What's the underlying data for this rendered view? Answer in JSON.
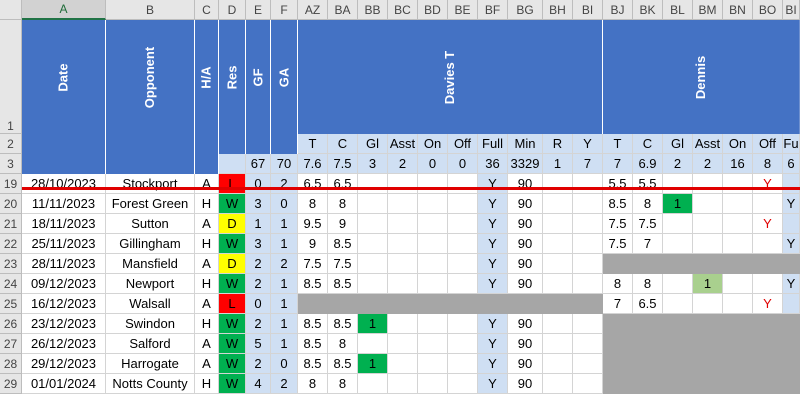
{
  "column_letters": [
    "A",
    "B",
    "C",
    "D",
    "E",
    "F",
    "AZ",
    "BA",
    "BB",
    "BC",
    "BD",
    "BE",
    "BF",
    "BG",
    "BH",
    "BI",
    "BJ",
    "BK",
    "BL",
    "BM",
    "BN",
    "BO",
    "BI"
  ],
  "selected_column": "A",
  "header_titles": {
    "date": "Date",
    "opponent": "Opponent",
    "ha": "H/A",
    "res": "Res",
    "gf": "GF",
    "ga": "GA",
    "player1": "Davies T",
    "player2": "Dennis"
  },
  "row_numbers_top": [
    "1",
    "2",
    "3"
  ],
  "stat_labels": [
    "T",
    "C",
    "Gl",
    "Asst",
    "On",
    "Off",
    "Full",
    "Min",
    "R",
    "Y",
    "T",
    "C",
    "Gl",
    "Asst",
    "On",
    "Off",
    "Fu"
  ],
  "totals": {
    "gf": "67",
    "ga": "70",
    "p1": [
      "7.6",
      "7.5",
      "3",
      "2",
      "0",
      "0",
      "36",
      "3329",
      "1",
      "7"
    ],
    "p2": [
      "7",
      "6.9",
      "2",
      "2",
      "16",
      "8",
      "6"
    ]
  },
  "rows": [
    {
      "row": "19",
      "date": "28/10/2023",
      "opp": "Stockport",
      "ha": "A",
      "res": "L",
      "gf": "0",
      "ga": "2",
      "p1": [
        "6.5",
        "6.5",
        "",
        "",
        "",
        "",
        "Y",
        "90",
        "",
        ""
      ],
      "p2": [
        "5.5",
        "5.5",
        "",
        "",
        "",
        "Y",
        ""
      ],
      "p1_gray": false,
      "p2_gray": false
    },
    {
      "row": "20",
      "date": "11/11/2023",
      "opp": "Forest Green",
      "ha": "H",
      "res": "W",
      "gf": "3",
      "ga": "0",
      "p1": [
        "8",
        "8",
        "",
        "",
        "",
        "",
        "Y",
        "90",
        "",
        ""
      ],
      "p2": [
        "8.5",
        "8",
        "1",
        "",
        "",
        "",
        "Y"
      ],
      "p1_gray": false,
      "p2_gray": false
    },
    {
      "row": "21",
      "date": "18/11/2023",
      "opp": "Sutton",
      "ha": "A",
      "res": "D",
      "gf": "1",
      "ga": "1",
      "p1": [
        "9.5",
        "9",
        "",
        "",
        "",
        "",
        "Y",
        "90",
        "",
        ""
      ],
      "p2": [
        "7.5",
        "7.5",
        "",
        "",
        "",
        "Y",
        ""
      ],
      "p1_gray": false,
      "p2_gray": false
    },
    {
      "row": "22",
      "date": "25/11/2023",
      "opp": "Gillingham",
      "ha": "H",
      "res": "W",
      "gf": "3",
      "ga": "1",
      "p1": [
        "9",
        "8.5",
        "",
        "",
        "",
        "",
        "Y",
        "90",
        "",
        ""
      ],
      "p2": [
        "7.5",
        "7",
        "",
        "",
        "",
        "",
        "Y"
      ],
      "p1_gray": false,
      "p2_gray": false
    },
    {
      "row": "23",
      "date": "28/11/2023",
      "opp": "Mansfield",
      "ha": "A",
      "res": "D",
      "gf": "2",
      "ga": "2",
      "p1": [
        "7.5",
        "7.5",
        "",
        "",
        "",
        "",
        "Y",
        "90",
        "",
        ""
      ],
      "p2": [
        "",
        "",
        "",
        "",
        "",
        "",
        ""
      ],
      "p1_gray": false,
      "p2_gray": true
    },
    {
      "row": "24",
      "date": "09/12/2023",
      "opp": "Newport",
      "ha": "H",
      "res": "W",
      "gf": "2",
      "ga": "1",
      "p1": [
        "8.5",
        "8.5",
        "",
        "",
        "",
        "",
        "Y",
        "90",
        "",
        ""
      ],
      "p2": [
        "8",
        "8",
        "",
        "1",
        "",
        "",
        "Y"
      ],
      "p1_gray": false,
      "p2_gray": false
    },
    {
      "row": "25",
      "date": "16/12/2023",
      "opp": "Walsall",
      "ha": "A",
      "res": "L",
      "gf": "0",
      "ga": "1",
      "p1": [
        "",
        "",
        "",
        "",
        "",
        "",
        "",
        "",
        "",
        ""
      ],
      "p2": [
        "7",
        "6.5",
        "",
        "",
        "",
        "Y",
        ""
      ],
      "p1_gray": true,
      "p2_gray": false
    },
    {
      "row": "26",
      "date": "23/12/2023",
      "opp": "Swindon",
      "ha": "H",
      "res": "W",
      "gf": "2",
      "ga": "1",
      "p1": [
        "8.5",
        "8.5",
        "1",
        "",
        "",
        "",
        "Y",
        "90",
        "",
        ""
      ],
      "p2": [
        "",
        "",
        "",
        "",
        "",
        "",
        ""
      ],
      "p1_gray": false,
      "p2_gray": true
    },
    {
      "row": "27",
      "date": "26/12/2023",
      "opp": "Salford",
      "ha": "A",
      "res": "W",
      "gf": "5",
      "ga": "1",
      "p1": [
        "8.5",
        "8",
        "",
        "",
        "",
        "",
        "Y",
        "90",
        "",
        ""
      ],
      "p2": [
        "",
        "",
        "",
        "",
        "",
        "",
        ""
      ],
      "p1_gray": false,
      "p2_gray": true
    },
    {
      "row": "28",
      "date": "29/12/2023",
      "opp": "Harrogate",
      "ha": "A",
      "res": "W",
      "gf": "2",
      "ga": "0",
      "p1": [
        "8.5",
        "8.5",
        "1",
        "",
        "",
        "",
        "Y",
        "90",
        "",
        ""
      ],
      "p2": [
        "",
        "",
        "",
        "",
        "",
        "",
        ""
      ],
      "p1_gray": false,
      "p2_gray": true
    },
    {
      "row": "29",
      "date": "01/01/2024",
      "opp": "Notts County",
      "ha": "H",
      "res": "W",
      "gf": "4",
      "ga": "2",
      "p1": [
        "8",
        "8",
        "",
        "",
        "",
        "",
        "Y",
        "90",
        "",
        ""
      ],
      "p2": [
        "",
        "",
        "",
        "",
        "",
        "",
        ""
      ],
      "p1_gray": false,
      "p2_gray": true
    }
  ],
  "colors": {
    "win": "#00b050",
    "draw": "#ffff00",
    "loss": "#ff0000",
    "header_blue": "#4472c4",
    "light_blue": "#cfdff3",
    "gray": "#a6a6a6",
    "goal_green": "#00b050",
    "assist_green": "#a9d08e"
  }
}
